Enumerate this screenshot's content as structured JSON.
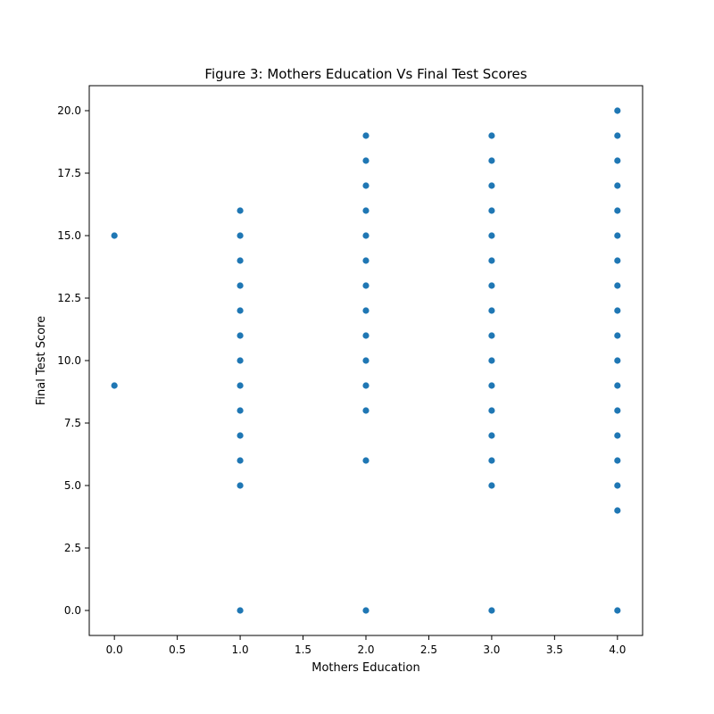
{
  "chart_data": {
    "type": "scatter",
    "title": "Figure 3: Mothers Education Vs Final Test Scores",
    "xlabel": "Mothers Education",
    "ylabel": "Final Test Score",
    "xlim": [
      -0.2,
      4.2
    ],
    "ylim": [
      -1,
      21
    ],
    "x_ticks": [
      0.0,
      0.5,
      1.0,
      1.5,
      2.0,
      2.5,
      3.0,
      3.5,
      4.0
    ],
    "x_tick_labels": [
      "0.0",
      "0.5",
      "1.0",
      "1.5",
      "2.0",
      "2.5",
      "3.0",
      "3.5",
      "4.0"
    ],
    "y_ticks": [
      0.0,
      2.5,
      5.0,
      7.5,
      10.0,
      12.5,
      15.0,
      17.5,
      20.0
    ],
    "y_tick_labels": [
      "0.0",
      "2.5",
      "5.0",
      "7.5",
      "10.0",
      "12.5",
      "15.0",
      "17.5",
      "20.0"
    ],
    "grid": false,
    "marker_color": "#1f77b4",
    "series": [
      {
        "points": [
          [
            0,
            15
          ],
          [
            0,
            9
          ],
          [
            1,
            16
          ],
          [
            1,
            15
          ],
          [
            1,
            14
          ],
          [
            1,
            13
          ],
          [
            1,
            12
          ],
          [
            1,
            11
          ],
          [
            1,
            10
          ],
          [
            1,
            9
          ],
          [
            1,
            8
          ],
          [
            1,
            7
          ],
          [
            1,
            6
          ],
          [
            1,
            5
          ],
          [
            1,
            0
          ],
          [
            2,
            19
          ],
          [
            2,
            18
          ],
          [
            2,
            17
          ],
          [
            2,
            16
          ],
          [
            2,
            15
          ],
          [
            2,
            14
          ],
          [
            2,
            13
          ],
          [
            2,
            12
          ],
          [
            2,
            11
          ],
          [
            2,
            10
          ],
          [
            2,
            9
          ],
          [
            2,
            8
          ],
          [
            2,
            6
          ],
          [
            2,
            0
          ],
          [
            3,
            19
          ],
          [
            3,
            18
          ],
          [
            3,
            17
          ],
          [
            3,
            16
          ],
          [
            3,
            15
          ],
          [
            3,
            14
          ],
          [
            3,
            13
          ],
          [
            3,
            12
          ],
          [
            3,
            11
          ],
          [
            3,
            10
          ],
          [
            3,
            9
          ],
          [
            3,
            8
          ],
          [
            3,
            7
          ],
          [
            3,
            6
          ],
          [
            3,
            5
          ],
          [
            3,
            0
          ],
          [
            4,
            20
          ],
          [
            4,
            19
          ],
          [
            4,
            18
          ],
          [
            4,
            17
          ],
          [
            4,
            16
          ],
          [
            4,
            15
          ],
          [
            4,
            14
          ],
          [
            4,
            13
          ],
          [
            4,
            12
          ],
          [
            4,
            11
          ],
          [
            4,
            10
          ],
          [
            4,
            9
          ],
          [
            4,
            8
          ],
          [
            4,
            7
          ],
          [
            4,
            6
          ],
          [
            4,
            5
          ],
          [
            4,
            4
          ],
          [
            4,
            0
          ]
        ]
      }
    ]
  }
}
